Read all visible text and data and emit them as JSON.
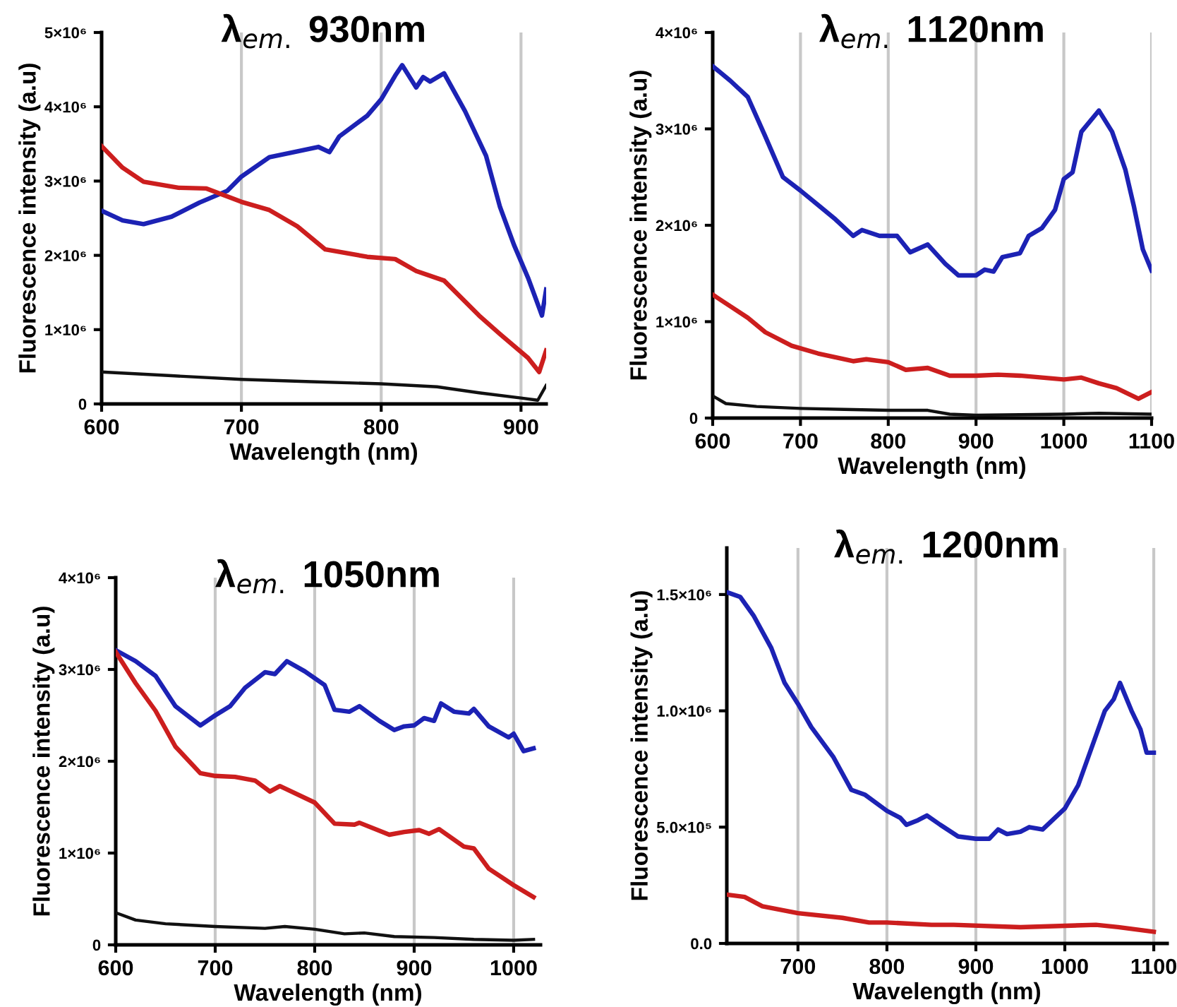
{
  "chart_data": [
    {
      "type": "line",
      "title": "λ$_{em.}$ 930nm",
      "xlabel": "Wavelength (nm)",
      "ylabel": "Fluorescence intensity (a.u)",
      "xlim": [
        600,
        918
      ],
      "ylim": [
        0,
        5000000.0
      ],
      "xticks": [
        600,
        700,
        800,
        900
      ],
      "yticks": [
        {
          "value": 0,
          "label": "0"
        },
        {
          "value": 1000000.0,
          "label": "1×10⁶"
        },
        {
          "value": 2000000.0,
          "label": "2×10⁶"
        },
        {
          "value": 3000000.0,
          "label": "3×10⁶"
        },
        {
          "value": 4000000.0,
          "label": "4×10⁶"
        },
        {
          "value": 5000000.0,
          "label": "5×10⁶"
        }
      ],
      "grid": "x",
      "series": [
        {
          "color": "#1c22b4",
          "x": [
            600,
            615,
            630,
            650,
            670,
            690,
            700,
            720,
            740,
            755,
            763,
            770,
            790,
            800,
            810,
            815,
            825,
            830,
            835,
            845,
            860,
            875,
            885,
            895,
            905,
            915,
            918
          ],
          "values": [
            2600000.0,
            2470000.0,
            2420000.0,
            2520000.0,
            2710000.0,
            2870000.0,
            3060000.0,
            3320000.0,
            3400000.0,
            3460000.0,
            3390000.0,
            3600000.0,
            3880000.0,
            4100000.0,
            4420000.0,
            4560000.0,
            4260000.0,
            4400000.0,
            4340000.0,
            4450000.0,
            3940000.0,
            3340000.0,
            2650000.0,
            2140000.0,
            1700000.0,
            1190000.0,
            1540000.0
          ]
        },
        {
          "color": "#cc1e1e",
          "x": [
            600,
            615,
            630,
            655,
            675,
            700,
            720,
            740,
            760,
            790,
            810,
            825,
            845,
            870,
            885,
            905,
            913,
            918
          ],
          "values": [
            3470000.0,
            3180000.0,
            2990000.0,
            2910000.0,
            2900000.0,
            2720000.0,
            2610000.0,
            2390000.0,
            2080000.0,
            1980000.0,
            1950000.0,
            1790000.0,
            1660000.0,
            1190000.0,
            940000.0,
            620000.0,
            430000.0,
            720000.0
          ]
        },
        {
          "color": "#111111",
          "x": [
            600,
            650,
            700,
            750,
            800,
            840,
            870,
            900,
            912,
            918
          ],
          "values": [
            430000.0,
            380000.0,
            330000.0,
            300000.0,
            270000.0,
            230000.0,
            150000.0,
            80000.0,
            50000.0,
            250000.0
          ]
        }
      ]
    },
    {
      "type": "line",
      "title": "λ$_{em.}$ 1120nm",
      "xlabel": "Wavelength (nm)",
      "ylabel": "Fluorescence intensity (a.u)",
      "xlim": [
        600,
        1100
      ],
      "ylim": [
        0,
        4000000.0
      ],
      "xticks": [
        600,
        700,
        800,
        900,
        1000,
        1100
      ],
      "yticks": [
        {
          "value": 0,
          "label": "0"
        },
        {
          "value": 1000000.0,
          "label": "1×10⁶"
        },
        {
          "value": 2000000.0,
          "label": "2×10⁶"
        },
        {
          "value": 3000000.0,
          "label": "3×10⁶"
        },
        {
          "value": 4000000.0,
          "label": "4×10⁶"
        }
      ],
      "grid": "x",
      "series": [
        {
          "color": "#1c22b4",
          "x": [
            600,
            620,
            640,
            660,
            680,
            700,
            720,
            740,
            760,
            770,
            790,
            810,
            825,
            845,
            865,
            880,
            900,
            910,
            920,
            930,
            950,
            960,
            975,
            990,
            1000,
            1010,
            1020,
            1040,
            1055,
            1070,
            1080,
            1090,
            1100
          ],
          "values": [
            3650000.0,
            3500000.0,
            3330000.0,
            2920000.0,
            2500000.0,
            2360000.0,
            2210000.0,
            2060000.0,
            1890000.0,
            1950000.0,
            1890000.0,
            1890000.0,
            1720000.0,
            1800000.0,
            1600000.0,
            1480000.0,
            1480000.0,
            1540000.0,
            1520000.0,
            1670000.0,
            1710000.0,
            1890000.0,
            1970000.0,
            2160000.0,
            2480000.0,
            2550000.0,
            2970000.0,
            3190000.0,
            2970000.0,
            2580000.0,
            2190000.0,
            1750000.0,
            1530000.0
          ]
        },
        {
          "color": "#cc1e1e",
          "x": [
            600,
            620,
            640,
            660,
            690,
            720,
            760,
            775,
            800,
            820,
            845,
            870,
            900,
            925,
            950,
            975,
            1000,
            1020,
            1040,
            1060,
            1085,
            1100
          ],
          "values": [
            1280000.0,
            1160000.0,
            1040000.0,
            890000.0,
            750000.0,
            670000.0,
            590000.0,
            610000.0,
            580000.0,
            500000.0,
            520000.0,
            440000.0,
            440000.0,
            450000.0,
            440000.0,
            420000.0,
            400000.0,
            420000.0,
            360000.0,
            310000.0,
            200000.0,
            270000.0
          ]
        },
        {
          "color": "#111111",
          "x": [
            600,
            615,
            650,
            700,
            750,
            800,
            845,
            870,
            900,
            1000,
            1040,
            1100
          ],
          "values": [
            230000.0,
            150000.0,
            120000.0,
            100000.0,
            90000.0,
            80000.0,
            80000.0,
            40000.0,
            30000.0,
            40000.0,
            50000.0,
            40000.0
          ]
        }
      ]
    },
    {
      "type": "line",
      "title": "λ$_{em.}$ 1050nm",
      "xlabel": "Wavelength (nm)",
      "ylabel": "Fluorescence intensity (a.u)",
      "xlim": [
        600,
        1027
      ],
      "ylim": [
        0,
        4000000.0
      ],
      "xticks": [
        600,
        700,
        800,
        900,
        1000
      ],
      "yticks": [
        {
          "value": 0,
          "label": "0"
        },
        {
          "value": 1000000.0,
          "label": "1×10⁶"
        },
        {
          "value": 2000000.0,
          "label": "2×10⁶"
        },
        {
          "value": 3000000.0,
          "label": "3×10⁶"
        },
        {
          "value": 4000000.0,
          "label": "4×10⁶"
        }
      ],
      "grid": "x",
      "series": [
        {
          "color": "#1c22b4",
          "x": [
            600,
            620,
            640,
            660,
            685,
            700,
            715,
            730,
            750,
            760,
            772,
            790,
            810,
            820,
            835,
            845,
            865,
            880,
            890,
            900,
            910,
            920,
            927,
            940,
            955,
            960,
            975,
            995,
            1000,
            1010,
            1020
          ],
          "values": [
            3210000.0,
            3090000.0,
            2930000.0,
            2600000.0,
            2390000.0,
            2500000.0,
            2600000.0,
            2800000.0,
            2970000.0,
            2950000.0,
            3090000.0,
            2980000.0,
            2830000.0,
            2560000.0,
            2540000.0,
            2600000.0,
            2440000.0,
            2340000.0,
            2380000.0,
            2390000.0,
            2470000.0,
            2440000.0,
            2630000.0,
            2540000.0,
            2520000.0,
            2570000.0,
            2380000.0,
            2260000.0,
            2300000.0,
            2110000.0,
            2140000.0
          ]
        },
        {
          "color": "#cc1e1e",
          "x": [
            600,
            620,
            640,
            660,
            685,
            700,
            720,
            740,
            755,
            765,
            800,
            820,
            840,
            845,
            875,
            890,
            905,
            915,
            925,
            950,
            960,
            975,
            1000,
            1020
          ],
          "values": [
            3190000.0,
            2850000.0,
            2550000.0,
            2160000.0,
            1870000.0,
            1840000.0,
            1830000.0,
            1790000.0,
            1670000.0,
            1730000.0,
            1550000.0,
            1320000.0,
            1310000.0,
            1330000.0,
            1200000.0,
            1230000.0,
            1250000.0,
            1210000.0,
            1260000.0,
            1070000.0,
            1050000.0,
            830000.0,
            650000.0,
            520000.0
          ]
        },
        {
          "color": "#111111",
          "x": [
            600,
            620,
            650,
            700,
            750,
            770,
            800,
            830,
            850,
            880,
            920,
            960,
            1000,
            1020
          ],
          "values": [
            350000.0,
            270000.0,
            230000.0,
            200000.0,
            180000.0,
            200000.0,
            170000.0,
            120000.0,
            130000.0,
            90000.0,
            80000.0,
            60000.0,
            50000.0,
            60000.0
          ]
        }
      ]
    },
    {
      "type": "line",
      "title": "λ$_{em.}$ 1200nm",
      "xlabel": "Wavelength (nm)",
      "ylabel": "Fluorescence intensity (a.u)",
      "xlim": [
        620,
        1115
      ],
      "ylim": [
        0,
        1700000.0
      ],
      "xticks": [
        700,
        800,
        900,
        1000,
        1100
      ],
      "yticks": [
        {
          "value": 0,
          "label": "0.0"
        },
        {
          "value": 500000.0,
          "label": "5.0×10⁵"
        },
        {
          "value": 1000000.0,
          "label": "1.0×10⁶"
        },
        {
          "value": 1500000.0,
          "label": "1.5×10⁶"
        }
      ],
      "grid": "x",
      "series": [
        {
          "color": "#1c22b4",
          "x": [
            620,
            635,
            650,
            670,
            685,
            700,
            715,
            740,
            760,
            775,
            800,
            815,
            822,
            835,
            845,
            860,
            880,
            900,
            915,
            925,
            935,
            950,
            960,
            975,
            1000,
            1015,
            1030,
            1045,
            1055,
            1062,
            1075,
            1085,
            1092,
            1100
          ],
          "values": [
            1510000.0,
            1490000.0,
            1410000.0,
            1270000.0,
            1120000.0,
            1030000.0,
            930000.0,
            800000.0,
            660000.0,
            640000.0,
            570000.0,
            540000.0,
            510000.0,
            530000.0,
            550000.0,
            510000.0,
            460000.0,
            450000.0,
            450000.0,
            490000.0,
            470000.0,
            480000.0,
            500000.0,
            490000.0,
            580000.0,
            680000.0,
            840000.0,
            1000000.0,
            1050000.0,
            1120000.0,
            1000000.0,
            920000.0,
            820000.0,
            820000.0
          ]
        },
        {
          "color": "#cc1e1e",
          "x": [
            620,
            640,
            660,
            700,
            750,
            780,
            800,
            850,
            875,
            950,
            1035,
            1060,
            1100
          ],
          "values": [
            210000.0,
            200000.0,
            160000.0,
            130000.0,
            110000.0,
            90000.0,
            90000.0,
            80000.0,
            80000.0,
            70000.0,
            80000.0,
            70000.0,
            50000.0
          ]
        }
      ]
    }
  ]
}
